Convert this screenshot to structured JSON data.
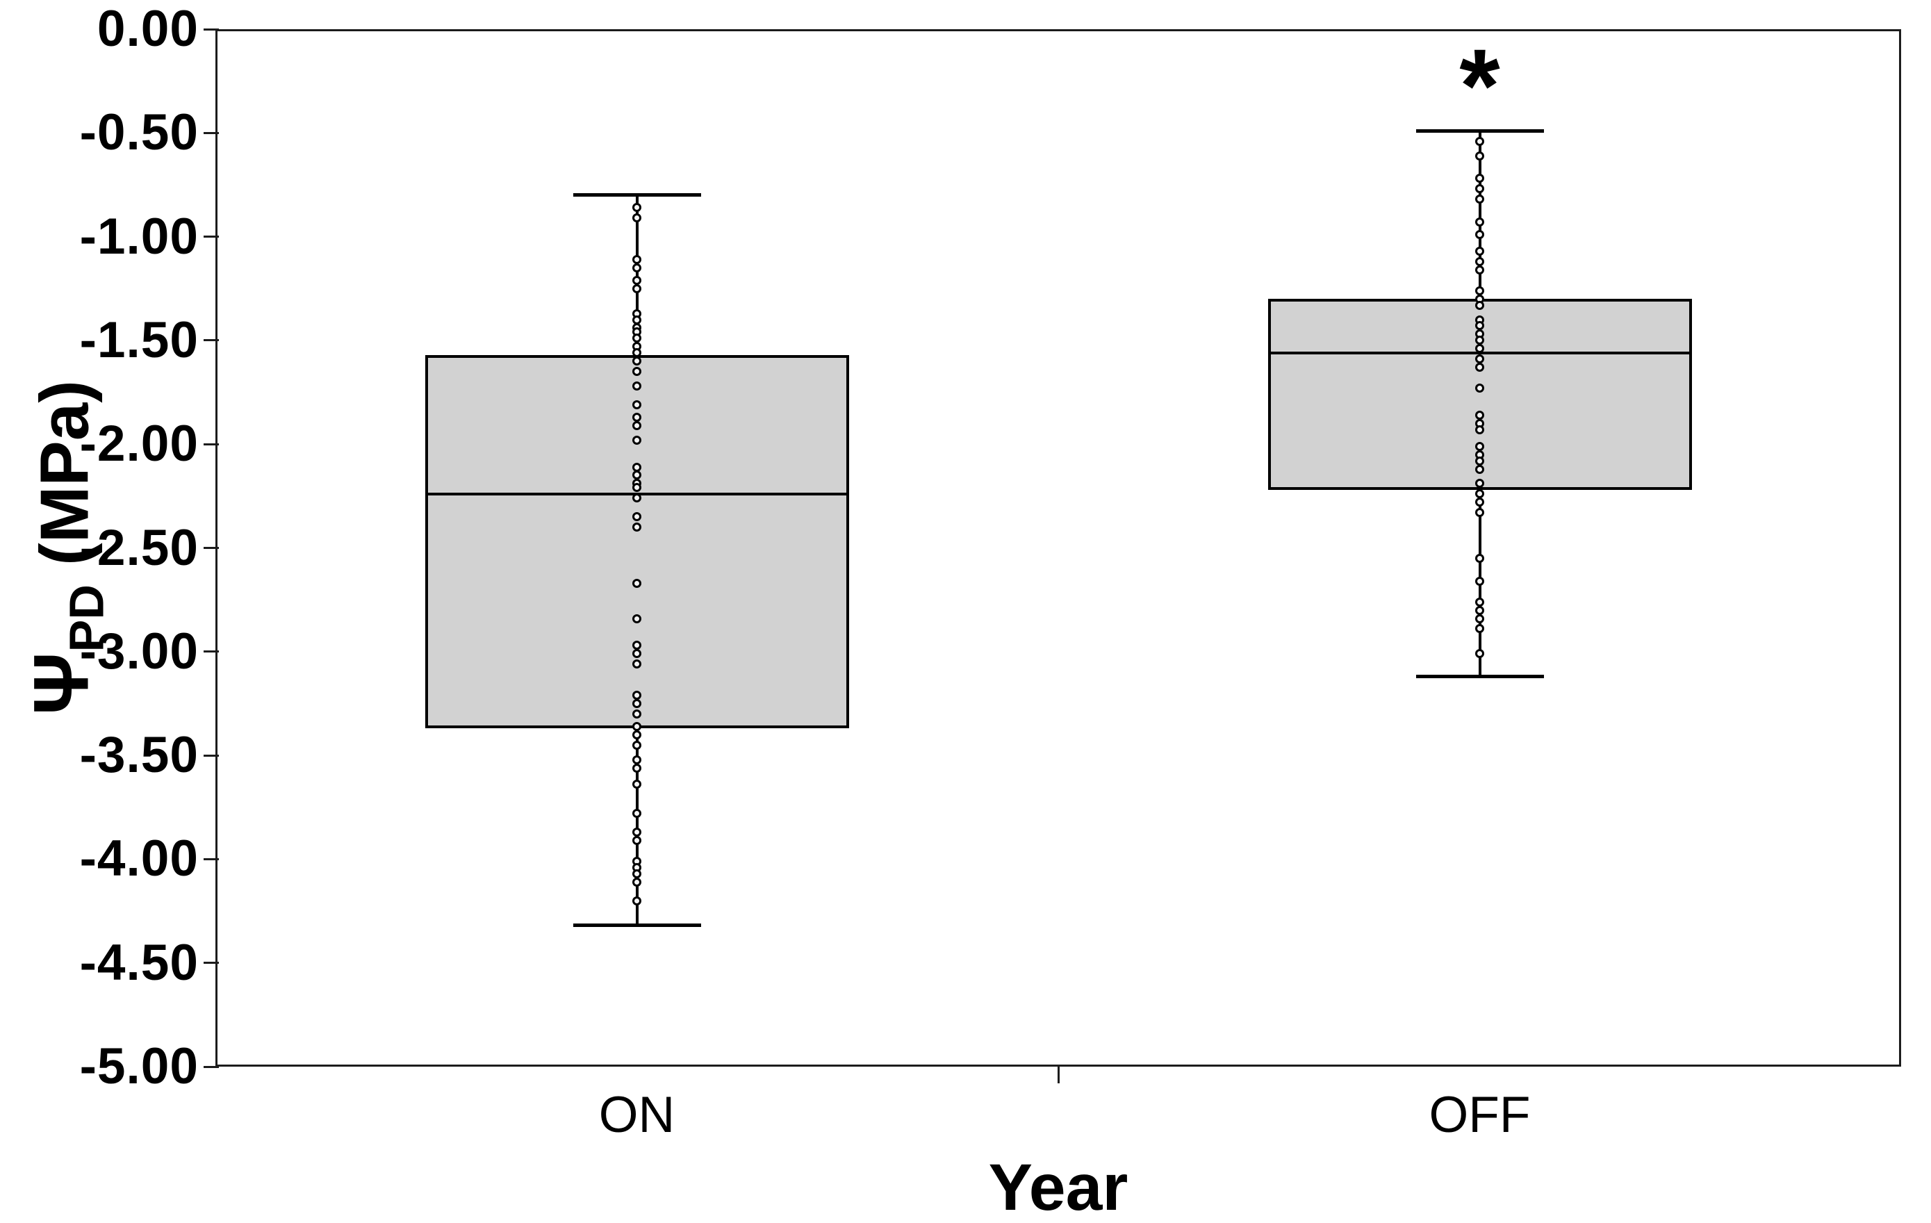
{
  "y_axis": {
    "symbol": "Ψ",
    "subscript": "PD",
    "unit": " (MPa)",
    "tick_labels": [
      "0.00",
      "-0.50",
      "-1.00",
      "-1.50",
      "-2.00",
      "-2.50",
      "-3.00",
      "-3.50",
      "-4.00",
      "-4.50",
      "-5.00"
    ]
  },
  "x_axis": {
    "title": "Year",
    "categories": [
      "ON",
      "OFF"
    ]
  },
  "annotations": [
    {
      "text": "*",
      "category": "OFF",
      "y": -0.19
    }
  ],
  "chart_data": {
    "type": "boxplot",
    "categories": [
      "ON",
      "OFF"
    ],
    "xlabel": "Year",
    "ylabel": "Ψ_PD (MPa)",
    "ylim": [
      -5,
      0
    ],
    "yticks": [
      0,
      -0.5,
      -1,
      -1.5,
      -2,
      -2.5,
      -3,
      -3.5,
      -4,
      -4.5,
      -5
    ],
    "grid": false,
    "legend": "none",
    "box_fill": "#d2d2d2",
    "line_color": "#000000",
    "points_style": "open-circles-stacked-on-center-line",
    "series": [
      {
        "name": "ON",
        "whisker_low": -4.32,
        "q1": -3.37,
        "median": -2.24,
        "q3": -1.57,
        "whisker_high": -0.8,
        "points": [
          -0.86,
          -0.91,
          -1.11,
          -1.15,
          -1.21,
          -1.25,
          -1.37,
          -1.4,
          -1.44,
          -1.46,
          -1.49,
          -1.53,
          -1.56,
          -1.6,
          -1.65,
          -1.72,
          -1.81,
          -1.87,
          -1.91,
          -1.98,
          -2.11,
          -2.15,
          -2.19,
          -2.21,
          -2.26,
          -2.35,
          -2.4,
          -2.67,
          -2.84,
          -2.97,
          -3.01,
          -3.06,
          -3.21,
          -3.25,
          -3.3,
          -3.36,
          -3.4,
          -3.45,
          -3.52,
          -3.56,
          -3.64,
          -3.78,
          -3.87,
          -3.91,
          -4.01,
          -4.04,
          -4.07,
          -4.11,
          -4.2
        ]
      },
      {
        "name": "OFF",
        "whisker_low": -3.12,
        "q1": -2.22,
        "median": -1.56,
        "q3": -1.3,
        "whisker_high": -0.49,
        "significance": "*",
        "points": [
          -0.54,
          -0.61,
          -0.72,
          -0.77,
          -0.82,
          -0.93,
          -0.99,
          -1.07,
          -1.12,
          -1.16,
          -1.26,
          -1.3,
          -1.33,
          -1.4,
          -1.43,
          -1.47,
          -1.5,
          -1.54,
          -1.59,
          -1.63,
          -1.73,
          -1.86,
          -1.9,
          -1.93,
          -2.01,
          -2.05,
          -2.08,
          -2.12,
          -2.19,
          -2.24,
          -2.28,
          -2.33,
          -2.55,
          -2.66,
          -2.76,
          -2.8,
          -2.84,
          -2.89,
          -3.01
        ]
      }
    ]
  }
}
